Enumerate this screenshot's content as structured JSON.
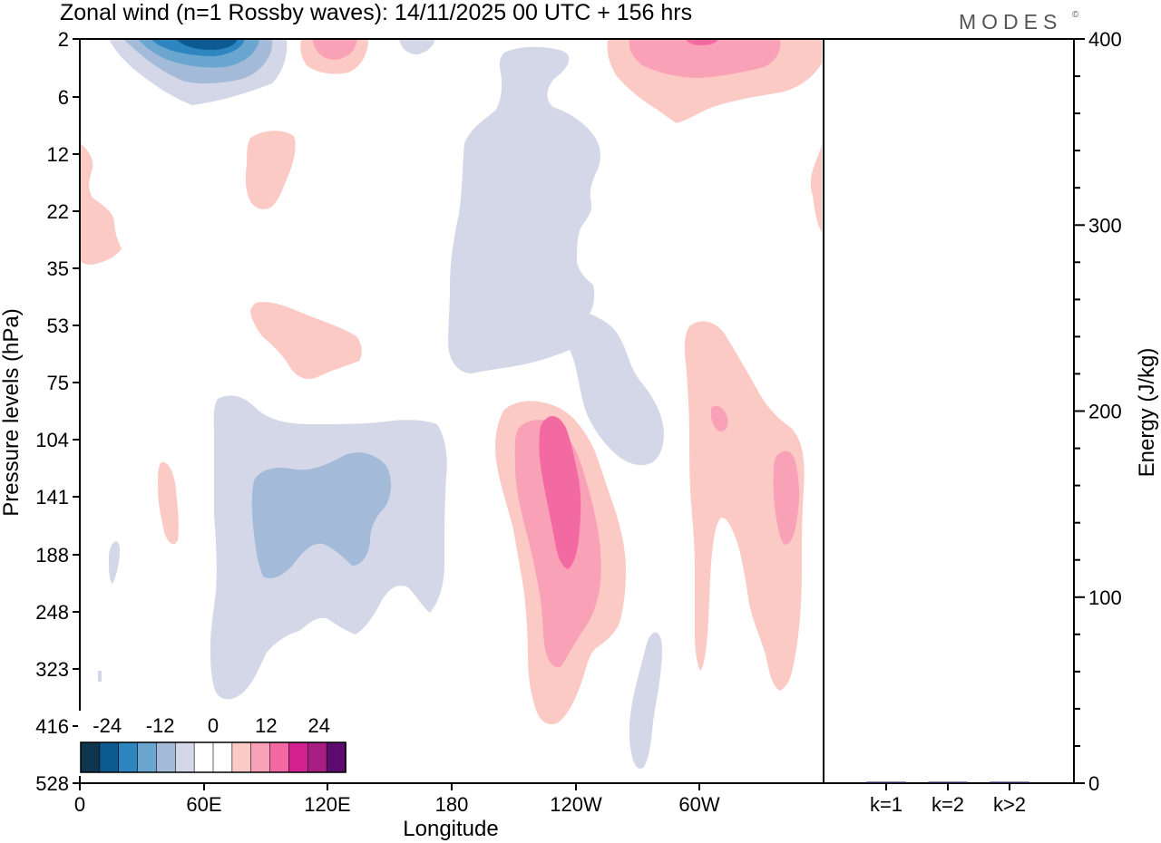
{
  "header": {
    "title": "Zonal wind (n=1 Rossby waves):  14/11/2025  00 UTC  + 156 hrs",
    "brand": "MODES",
    "brand_mark": "©"
  },
  "chart_data": [
    {
      "type": "contour",
      "title": "Zonal wind (n=1 Rossby waves):  14/11/2025  00 UTC  + 156 hrs",
      "xlabel": "Longitude",
      "ylabel": "Pressure levels (hPa)",
      "x_ticks": [
        "0",
        "60E",
        "120E",
        "180",
        "120W",
        "60W"
      ],
      "x_tick_values": [
        0,
        60,
        120,
        180,
        240,
        300
      ],
      "xlim": [
        0,
        360
      ],
      "y_ticks": [
        "2",
        "6",
        "12",
        "22",
        "35",
        "53",
        "75",
        "104",
        "141",
        "188",
        "248",
        "323",
        "416",
        "528"
      ],
      "y_scale": "pressure levels, top to bottom",
      "colorbar": {
        "labels": [
          "-24",
          "-12",
          "0",
          "12",
          "24"
        ],
        "label_levels": [
          -24,
          -12,
          0,
          12,
          24
        ],
        "levels": [
          -30,
          -26,
          -22,
          -18,
          -14,
          -10,
          -6,
          -2,
          2,
          6,
          10,
          14,
          18,
          22,
          26,
          30
        ],
        "colors": [
          "#10354f",
          "#0d5a93",
          "#2e86c1",
          "#6aa6cf",
          "#a3bbd9",
          "#d4d7e7",
          "#ffffff",
          "#ffffff",
          "#fbcac5",
          "#f8a1b7",
          "#f36aa3",
          "#d4208f",
          "#a71e83",
          "#5e0b6f"
        ],
        "placement": "bottom-left"
      },
      "color_keys": {
        "neg_light": "#d4d7e7",
        "neg_mid": "#a3bbd9",
        "neg_strong": "#6aa6cf",
        "neg_deep": "#2e86c1",
        "neg_core": "#0d5a93",
        "pos_light": "#fbcac5",
        "pos_mid": "#f8a1b7",
        "pos_strong": "#f36aa3",
        "pos_deep": "#d4208f"
      }
    },
    {
      "type": "bar",
      "ylabel": "Energy (J/kg)",
      "categories": [
        "k=1",
        "k=2",
        "k>2"
      ],
      "values": [
        0.6,
        0.1,
        0.3
      ],
      "ylim": [
        0,
        400
      ],
      "y_ticks": [
        "0",
        "100",
        "200",
        "300",
        "400"
      ],
      "y_tick_values": [
        0,
        100,
        200,
        300,
        400
      ],
      "bar_color": "#1a1a4a"
    }
  ]
}
